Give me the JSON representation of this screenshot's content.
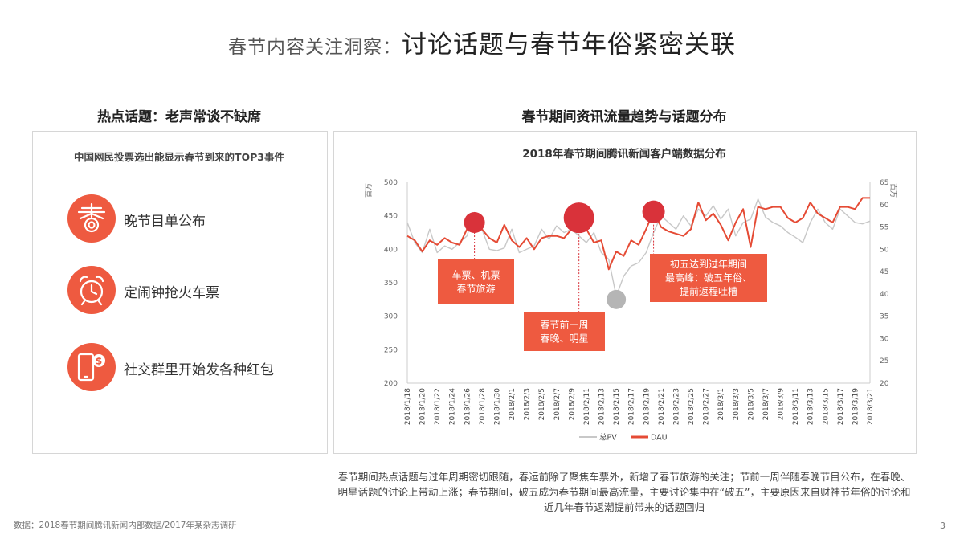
{
  "page": {
    "title_prefix": "春节内容关注洞察：",
    "title_main": "讨论话题与春节年俗紧密关联",
    "page_number": "3",
    "source_note": "数据：2018春节期间腾讯新闻内部数据/2017年某杂志调研"
  },
  "left_panel": {
    "heading": "热点话题：老声常谈不缺席",
    "subtitle": "中国网民投票选出能显示春节到来的TOP3事件",
    "events": [
      {
        "label": "晚节目单公布",
        "icon": "spring-festival-gala-icon"
      },
      {
        "label": "定闹钟抢火车票",
        "icon": "alarm-clock-icon"
      },
      {
        "label": "社交群里开始发各种红包",
        "icon": "phone-red-packet-icon"
      }
    ],
    "accent_color": "#ee5a40"
  },
  "right_panel": {
    "heading": "春节期间资讯流量趋势与话题分布",
    "description": "春节期间热点话题与过年周期密切跟随，春运前除了聚焦车票外，新增了春节旅游的关注；节前一周伴随春晚节目公布，在春晚、明星话题的讨论上带动上涨；春节期间，破五成为春节期间最高流量，主要讨论集中在“破五”，主要原因来自财神节年俗的讨论和近几年春节返潮提前带来的话题回归"
  },
  "chart_data": {
    "type": "line",
    "title": "2018年春节期间腾讯新闻客户端数据分布",
    "x": [
      "2018/1/18",
      "2018/1/19",
      "2018/1/20",
      "2018/1/21",
      "2018/1/22",
      "2018/1/23",
      "2018/1/24",
      "2018/1/25",
      "2018/1/26",
      "2018/1/27",
      "2018/1/28",
      "2018/1/29",
      "2018/1/30",
      "2018/1/31",
      "2018/2/1",
      "2018/2/2",
      "2018/2/3",
      "2018/2/4",
      "2018/2/5",
      "2018/2/6",
      "2018/2/7",
      "2018/2/8",
      "2018/2/9",
      "2018/2/10",
      "2018/2/11",
      "2018/2/12",
      "2018/2/13",
      "2018/2/14",
      "2018/2/15",
      "2018/2/16",
      "2018/2/17",
      "2018/2/18",
      "2018/2/19",
      "2018/2/20",
      "2018/2/21",
      "2018/2/22",
      "2018/2/23",
      "2018/2/24",
      "2018/2/25",
      "2018/2/26",
      "2018/2/27",
      "2018/2/28",
      "2018/3/1",
      "2018/3/2",
      "2018/3/3",
      "2018/3/4",
      "2018/3/5",
      "2018/3/6",
      "2018/3/7",
      "2018/3/8",
      "2018/3/9",
      "2018/3/10",
      "2018/3/11",
      "2018/3/12",
      "2018/3/13",
      "2018/3/14",
      "2018/3/15",
      "2018/3/16",
      "2018/3/17",
      "2018/3/18",
      "2018/3/19",
      "2018/3/20",
      "2018/3/21"
    ],
    "x_tick_labels": [
      "2018/1/18",
      "2018/1/20",
      "2018/1/22",
      "2018/1/24",
      "2018/1/26",
      "2018/1/28",
      "2018/1/30",
      "2018/2/1",
      "2018/2/3",
      "2018/2/5",
      "2018/2/7",
      "2018/2/9",
      "2018/2/11",
      "2018/2/13",
      "2018/2/15",
      "2018/2/17",
      "2018/2/19",
      "2018/2/21",
      "2018/2/23",
      "2018/2/25",
      "2018/2/27",
      "2018/3/1",
      "2018/3/3",
      "2018/3/5",
      "2018/3/7",
      "2018/3/9",
      "2018/3/11",
      "2018/3/13",
      "2018/3/15",
      "2018/3/17",
      "2018/3/19",
      "2018/3/21"
    ],
    "y_left": {
      "label": "百万",
      "range": [
        200,
        500
      ],
      "ticks": [
        200,
        250,
        300,
        350,
        400,
        450,
        500
      ]
    },
    "y_right": {
      "label": "百万",
      "range": [
        20,
        65
      ],
      "ticks": [
        20,
        25,
        30,
        35,
        40,
        45,
        50,
        55,
        60,
        65
      ]
    },
    "series": [
      {
        "name": "总PV",
        "axis": "left",
        "color": "#c8c8c8",
        "values": [
          440,
          410,
          395,
          430,
          395,
          405,
          400,
          410,
          420,
          455,
          430,
          400,
          398,
          402,
          430,
          395,
          400,
          405,
          430,
          415,
          435,
          425,
          430,
          420,
          410,
          425,
          395,
          385,
          330,
          360,
          375,
          380,
          395,
          425,
          450,
          440,
          430,
          450,
          435,
          460,
          450,
          465,
          445,
          460,
          420,
          440,
          445,
          475,
          448,
          440,
          435,
          425,
          418,
          410,
          440,
          460,
          440,
          430,
          460,
          450,
          440,
          438,
          442
        ]
      },
      {
        "name": "DAU",
        "axis": "right",
        "color": "#e54b35",
        "values": [
          53,
          52,
          49.5,
          52,
          51,
          52.5,
          51.5,
          51,
          54.5,
          57,
          54.5,
          52.5,
          51.5,
          55.5,
          52,
          50.5,
          52.5,
          50,
          52.5,
          53,
          53,
          52.5,
          54.5,
          56,
          54.5,
          51.5,
          52,
          45.5,
          49.5,
          48.5,
          52,
          51,
          54.5,
          58.5,
          55,
          54,
          53.5,
          53,
          54.5,
          60.5,
          56.5,
          58,
          55.5,
          52,
          56,
          59,
          50.5,
          59.5,
          59,
          59.5,
          59.5,
          57,
          56,
          57,
          60.5,
          58,
          57,
          56,
          59.5,
          59.5,
          59,
          61.5,
          61.5
        ]
      }
    ],
    "bubbles": [
      {
        "x": "2018/1/27",
        "y": 440,
        "color": "#d9323a"
      },
      {
        "x": "2018/2/10",
        "y": 447,
        "color": "#d9323a"
      },
      {
        "x": "2018/2/15",
        "y": 325,
        "color": "#b5b5b5"
      },
      {
        "x": "2018/2/20",
        "y": 456,
        "color": "#d9323a"
      }
    ],
    "annotations": [
      {
        "text": [
          "车票、机票",
          "春节旅游"
        ],
        "anchor_x": "2018/1/27"
      },
      {
        "text": [
          "春节前一周",
          "春晚、明星"
        ],
        "anchor_x": "2018/2/10"
      },
      {
        "text": [
          "初五达到过年期间",
          "最高峰：破五年俗、",
          "提前返程吐槽"
        ],
        "anchor_x": "2018/2/20"
      }
    ],
    "legend": {
      "placement": "bottom",
      "items": [
        "总PV",
        "DAU"
      ]
    },
    "grid": false
  }
}
